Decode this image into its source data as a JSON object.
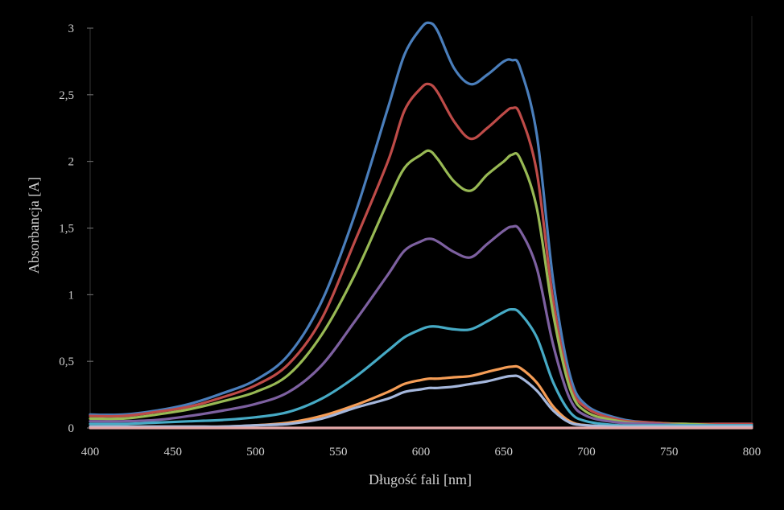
{
  "chart_data": {
    "type": "line",
    "title": "",
    "xlabel": "Długość fali [nm]",
    "ylabel": "Absorbancja [A]",
    "xlim": [
      400,
      800
    ],
    "ylim": [
      0,
      3
    ],
    "x_ticks": [
      "400",
      "450",
      "500",
      "550",
      "600",
      "650",
      "700",
      "750",
      "800"
    ],
    "y_ticks": [
      "0",
      "0,5",
      "1",
      "1,5",
      "2",
      "2,5",
      "3"
    ],
    "grid": false,
    "legend": "none",
    "x": [
      400,
      420,
      440,
      460,
      480,
      500,
      520,
      540,
      560,
      580,
      590,
      600,
      605,
      610,
      620,
      630,
      640,
      650,
      655,
      660,
      670,
      680,
      690,
      700,
      720,
      740,
      760,
      780,
      800
    ],
    "series": [
      {
        "color": "#4a7ebb",
        "values": [
          0.1,
          0.1,
          0.13,
          0.18,
          0.26,
          0.36,
          0.55,
          0.95,
          1.6,
          2.4,
          2.8,
          3.0,
          3.04,
          2.98,
          2.7,
          2.58,
          2.65,
          2.75,
          2.76,
          2.7,
          2.2,
          1.1,
          0.4,
          0.17,
          0.07,
          0.04,
          0.03,
          0.03,
          0.03
        ]
      },
      {
        "color": "#be4b48",
        "values": [
          0.09,
          0.09,
          0.12,
          0.16,
          0.23,
          0.32,
          0.48,
          0.82,
          1.4,
          2.0,
          2.38,
          2.55,
          2.58,
          2.52,
          2.3,
          2.17,
          2.25,
          2.36,
          2.4,
          2.35,
          1.92,
          0.95,
          0.34,
          0.15,
          0.06,
          0.04,
          0.03,
          0.03,
          0.03
        ]
      },
      {
        "color": "#98b954",
        "values": [
          0.07,
          0.07,
          0.1,
          0.14,
          0.2,
          0.27,
          0.4,
          0.7,
          1.15,
          1.7,
          1.95,
          2.05,
          2.08,
          2.02,
          1.85,
          1.78,
          1.9,
          2.0,
          2.05,
          2.02,
          1.65,
          0.85,
          0.3,
          0.12,
          0.05,
          0.03,
          0.03,
          0.02,
          0.02
        ]
      },
      {
        "color": "#7d60a0",
        "values": [
          0.05,
          0.05,
          0.06,
          0.09,
          0.13,
          0.18,
          0.27,
          0.47,
          0.8,
          1.15,
          1.33,
          1.4,
          1.42,
          1.4,
          1.32,
          1.28,
          1.38,
          1.48,
          1.51,
          1.48,
          1.2,
          0.62,
          0.22,
          0.09,
          0.04,
          0.03,
          0.02,
          0.02,
          0.02
        ]
      },
      {
        "color": "#46aac5",
        "values": [
          0.03,
          0.03,
          0.04,
          0.05,
          0.06,
          0.08,
          0.12,
          0.22,
          0.38,
          0.58,
          0.68,
          0.74,
          0.76,
          0.76,
          0.74,
          0.74,
          0.8,
          0.87,
          0.89,
          0.86,
          0.68,
          0.34,
          0.12,
          0.05,
          0.02,
          0.02,
          0.02,
          0.02,
          0.02
        ]
      },
      {
        "color": "#f59d56",
        "values": [
          0.01,
          0.01,
          0.01,
          0.01,
          0.01,
          0.02,
          0.04,
          0.09,
          0.17,
          0.27,
          0.33,
          0.36,
          0.37,
          0.37,
          0.38,
          0.39,
          0.42,
          0.45,
          0.46,
          0.45,
          0.34,
          0.16,
          0.05,
          0.02,
          0.01,
          0.01,
          0.01,
          0.01,
          0.01
        ]
      },
      {
        "color": "#a5b7dc",
        "values": [
          0.01,
          0.01,
          0.01,
          0.01,
          0.01,
          0.02,
          0.03,
          0.07,
          0.15,
          0.22,
          0.27,
          0.29,
          0.3,
          0.3,
          0.31,
          0.33,
          0.35,
          0.38,
          0.39,
          0.38,
          0.28,
          0.13,
          0.04,
          0.02,
          0.01,
          0.01,
          0.01,
          0.01,
          0.01
        ]
      },
      {
        "color": "#e6a9a9",
        "values": [
          0.0,
          0.0,
          0.0,
          0.0,
          0.0,
          0.0,
          0.0,
          0.0,
          0.0,
          0.0,
          0.0,
          0.0,
          0.0,
          0.0,
          0.0,
          0.0,
          0.0,
          0.0,
          0.0,
          0.0,
          0.0,
          0.0,
          0.0,
          0.0,
          0.0,
          0.0,
          0.0,
          0.0,
          0.0
        ]
      }
    ]
  }
}
